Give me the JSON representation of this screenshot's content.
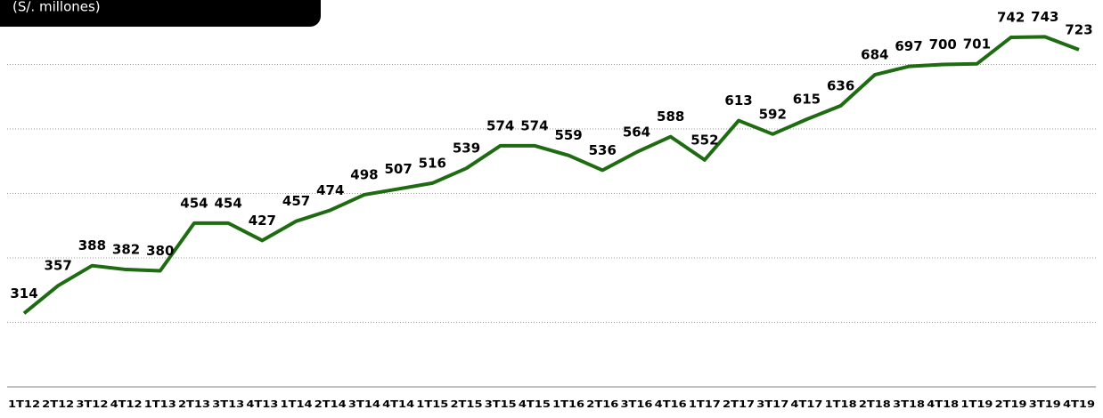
{
  "chart_data": {
    "type": "line",
    "subtitle": "(S/. millones)",
    "categories": [
      "1T12",
      "2T12",
      "3T12",
      "4T12",
      "1T13",
      "2T13",
      "3T13",
      "4T13",
      "1T14",
      "2T14",
      "3T14",
      "4T14",
      "1T15",
      "2T15",
      "3T15",
      "4T15",
      "1T16",
      "2T16",
      "3T16",
      "4T16",
      "1T17",
      "2T17",
      "3T17",
      "4T17",
      "1T18",
      "2T18",
      "3T18",
      "4T18",
      "1T19",
      "2T19",
      "3T19",
      "4T19"
    ],
    "values": [
      314,
      357,
      388,
      382,
      380,
      454,
      454,
      427,
      457,
      474,
      498,
      507,
      516,
      539,
      574,
      574,
      559,
      536,
      564,
      588,
      552,
      613,
      592,
      615,
      636,
      684,
      697,
      700,
      701,
      742,
      743,
      723
    ],
    "color": "#1e6b12",
    "ylim": [
      200,
      800
    ],
    "yticks": [
      200,
      300,
      400,
      500,
      600,
      700
    ],
    "grid": true
  }
}
